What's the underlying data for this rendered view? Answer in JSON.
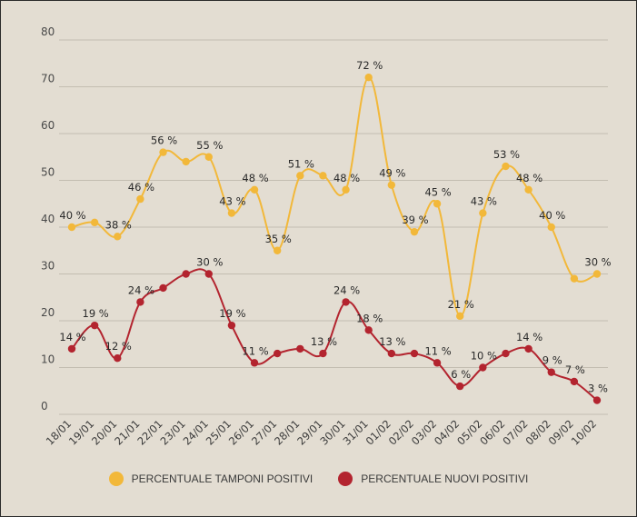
{
  "chart_data": {
    "type": "line",
    "x": [
      "18/01",
      "19/01",
      "20/01",
      "21/01",
      "22/01",
      "23/01",
      "24/01",
      "25/01",
      "26/01",
      "27/01",
      "28/01",
      "29/01",
      "30/01",
      "31/01",
      "01/02",
      "02/02",
      "03/02",
      "04/02",
      "05/02",
      "06/02",
      "07/02",
      "08/02",
      "09/02",
      "10/02"
    ],
    "ylim": [
      0,
      80
    ],
    "yticks": [
      0,
      10,
      20,
      30,
      40,
      50,
      60,
      70,
      80
    ],
    "grid": true,
    "legend_position": "bottom",
    "series": [
      {
        "name": "PERCENTUALE TAMPONI POSITIVI",
        "color": "#f2b83a",
        "values": [
          40,
          41,
          38,
          46,
          56,
          54,
          55,
          43,
          48,
          35,
          51,
          51,
          48,
          72,
          49,
          39,
          45,
          21,
          43,
          53,
          48,
          40,
          29,
          30
        ],
        "labels": [
          "40 %",
          "",
          "38 %",
          "46 %",
          "56 %",
          "",
          "55 %",
          "43 %",
          "48 %",
          "35 %",
          "51 %",
          "",
          "48 %",
          "72 %",
          "49 %",
          "39 %",
          "45 %",
          "21 %",
          "43 %",
          "53 %",
          "48 %",
          "40 %",
          "",
          "30 %"
        ]
      },
      {
        "name": "PERCENTUALE NUOVI POSITIVI",
        "color": "#b3242f",
        "values": [
          14,
          19,
          12,
          24,
          27,
          30,
          30,
          19,
          11,
          13,
          14,
          13,
          24,
          18,
          13,
          13,
          11,
          6,
          10,
          13,
          14,
          9,
          7,
          3
        ],
        "labels": [
          "14 %",
          "19 %",
          "12 %",
          "24 %",
          "",
          "",
          "30 %",
          "19 %",
          "11 %",
          "",
          "",
          "13 %",
          "24 %",
          "18 %",
          "13 %",
          "",
          "11 %",
          "6 %",
          "10 %",
          "",
          "14 %",
          "9 %",
          "7 %",
          "3 %"
        ]
      }
    ]
  }
}
